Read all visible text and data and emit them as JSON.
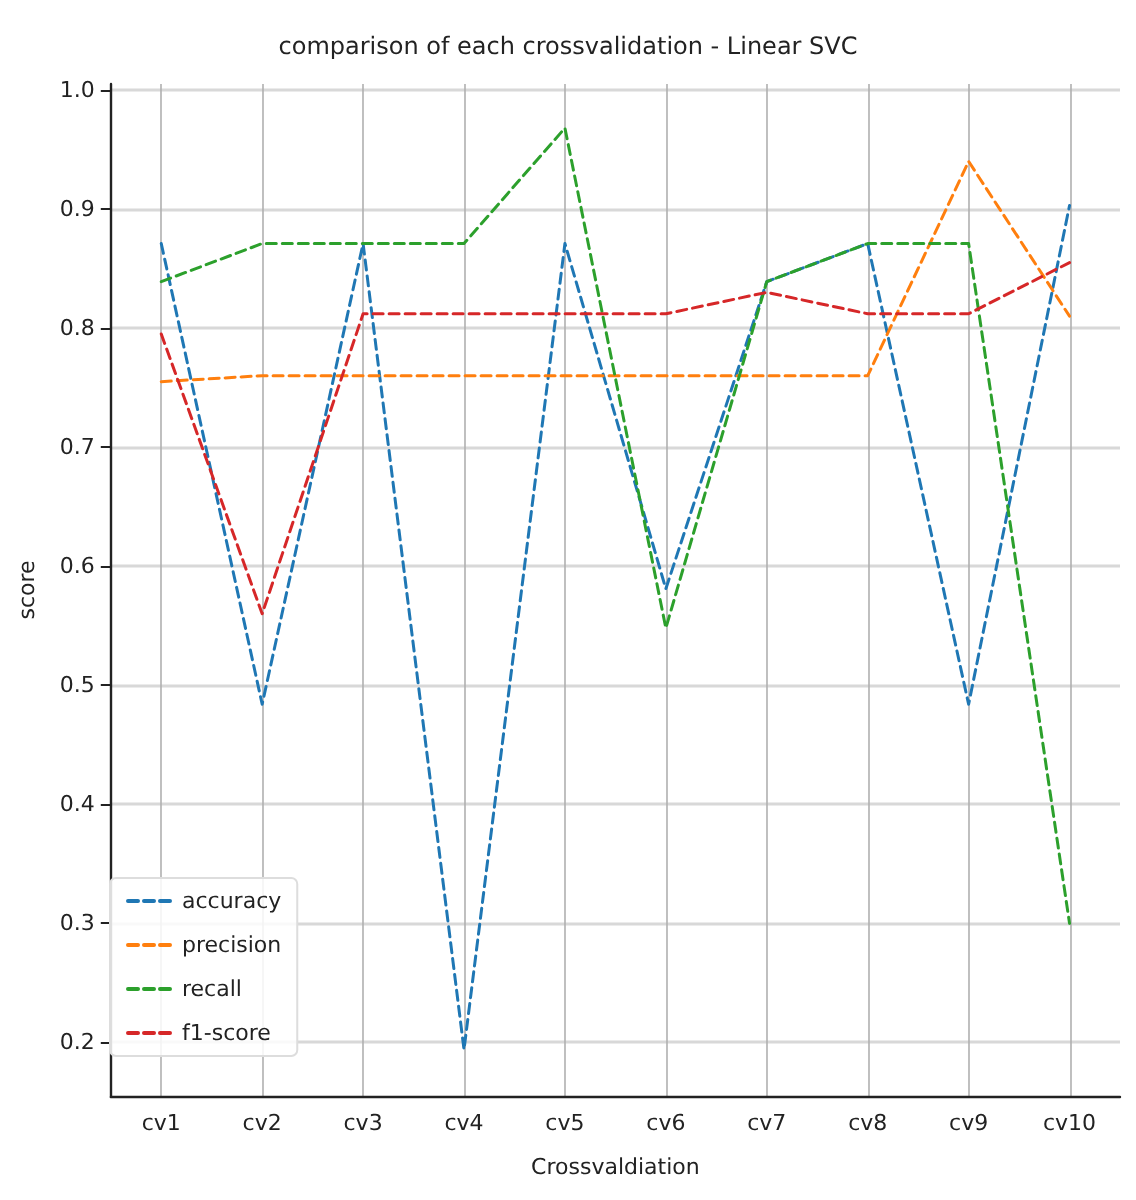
{
  "chart_data": {
    "type": "line",
    "title": "comparison of each crossvalidation - Linear SVC",
    "xlabel": "Crossvaldiation",
    "ylabel": "score",
    "categories": [
      "cv1",
      "cv2",
      "cv3",
      "cv4",
      "cv5",
      "cv6",
      "cv7",
      "cv8",
      "cv9",
      "cv10"
    ],
    "series": [
      {
        "name": "accuracy",
        "color": "#1f77b4",
        "values": [
          0.871,
          0.484,
          0.871,
          0.194,
          0.871,
          0.581,
          0.839,
          0.871,
          0.484,
          0.903
        ]
      },
      {
        "name": "precision",
        "color": "#ff7f0e",
        "values": [
          0.755,
          0.76,
          0.76,
          0.76,
          0.76,
          0.76,
          0.76,
          0.76,
          0.94,
          0.81
        ]
      },
      {
        "name": "recall",
        "color": "#2ca02c",
        "values": [
          0.839,
          0.871,
          0.871,
          0.871,
          0.968,
          0.548,
          0.839,
          0.871,
          0.871,
          0.3
        ]
      },
      {
        "name": "f1-score",
        "color": "#d62728",
        "values": [
          0.795,
          0.56,
          0.812,
          0.812,
          0.812,
          0.812,
          0.83,
          0.812,
          0.812,
          0.855
        ]
      }
    ],
    "ylim": [
      0.155,
      1.005
    ],
    "yticks": [
      0.2,
      0.3,
      0.4,
      0.5,
      0.6,
      0.7,
      0.8,
      0.9,
      {
        "value": 1,
        "label": "1.0"
      }
    ],
    "grid": true,
    "legend": "bottom left",
    "line_style": "dashed",
    "marker": "none"
  }
}
